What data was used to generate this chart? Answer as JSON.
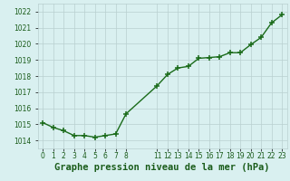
{
  "x": [
    0,
    1,
    2,
    3,
    4,
    5,
    6,
    7,
    8,
    11,
    12,
    13,
    14,
    15,
    16,
    17,
    18,
    19,
    20,
    21,
    22,
    23
  ],
  "y": [
    1015.1,
    1014.8,
    1014.6,
    1014.3,
    1014.3,
    1014.2,
    1014.3,
    1014.4,
    1015.65,
    1017.4,
    1018.1,
    1018.5,
    1018.6,
    1019.1,
    1019.15,
    1019.2,
    1019.45,
    1019.45,
    1019.95,
    1020.4,
    1021.3,
    1021.8
  ],
  "line_color": "#1a6b1a",
  "marker_color": "#1a6b1a",
  "bg_color": "#d9f0f0",
  "grid_color": "#b8cfcf",
  "xlabel": "Graphe pression niveau de la mer (hPa)",
  "xlabel_color": "#1a5c1a",
  "tick_color": "#1a5c1a",
  "ylim": [
    1013.5,
    1022.5
  ],
  "xlim": [
    -0.5,
    23.5
  ],
  "yticks": [
    1014,
    1015,
    1016,
    1017,
    1018,
    1019,
    1020,
    1021,
    1022
  ],
  "xticks": [
    0,
    1,
    2,
    3,
    4,
    5,
    6,
    7,
    8,
    11,
    12,
    13,
    14,
    15,
    16,
    17,
    18,
    19,
    20,
    21,
    22,
    23
  ],
  "xtick_labels": [
    "0",
    "1",
    "2",
    "3",
    "4",
    "5",
    "6",
    "7",
    "8",
    "11",
    "12",
    "13",
    "14",
    "15",
    "16",
    "17",
    "18",
    "19",
    "20",
    "21",
    "22",
    "23"
  ],
  "marker_size": 4,
  "line_width": 1.0,
  "xlabel_fontsize": 7.5,
  "tick_fontsize": 5.5
}
